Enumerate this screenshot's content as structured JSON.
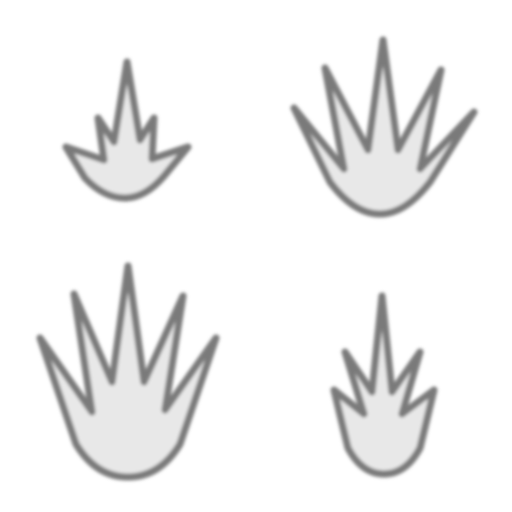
{
  "sprites": [
    {
      "name": "flame-small",
      "icon": "flame-icon",
      "fill": "#e8e8e8",
      "stroke": "#7a7a7a"
    },
    {
      "name": "flame-wide",
      "icon": "flame-icon",
      "fill": "#e8e8e8",
      "stroke": "#7a7a7a"
    },
    {
      "name": "flame-tall",
      "icon": "flame-icon",
      "fill": "#e8e8e8",
      "stroke": "#7a7a7a"
    },
    {
      "name": "flame-narrow",
      "icon": "flame-icon",
      "fill": "#e8e8e8",
      "stroke": "#7a7a7a"
    }
  ]
}
